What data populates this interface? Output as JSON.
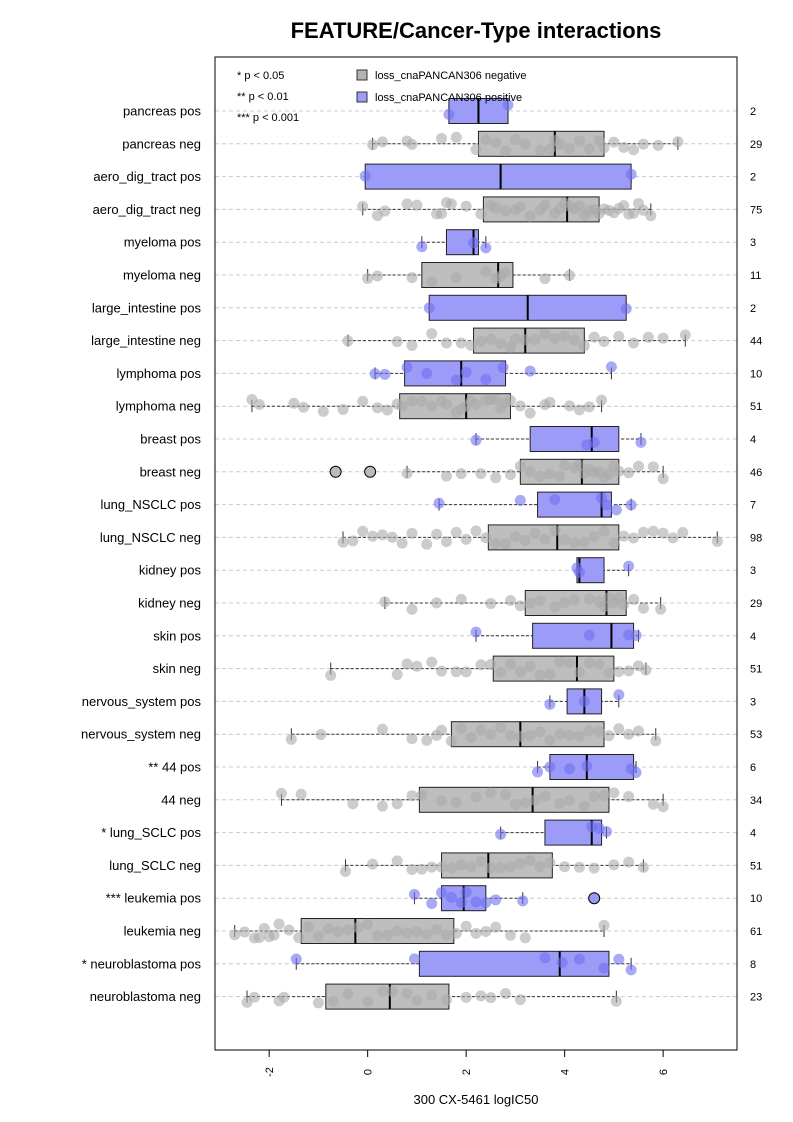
{
  "chart_data": {
    "type": "boxplot",
    "title": "FEATURE/Cancer-Type interactions",
    "xlabel": "300 CX-5461 logIC50",
    "ylabel": "",
    "xlim": [
      -3.1,
      7.5
    ],
    "x_ticks": [
      -2,
      0,
      2,
      4,
      6
    ],
    "x_tick_labels": [
      "-2",
      "0",
      "2",
      "4",
      "6"
    ],
    "grid": "horizontal dashed",
    "significance_key": [
      "* p < 0.05",
      "** p < 0.01",
      "*** p < 0.001"
    ],
    "legend": {
      "placement": "top-left",
      "entries": [
        {
          "label": "loss_cnaPANCAN306 negative",
          "color": "#b3b3b3"
        },
        {
          "label": "loss_cnaPANCAN306 positive",
          "color": "#9c9cf8"
        }
      ]
    },
    "colors": {
      "negative_box": "#bebebe",
      "positive_box": "#9c9cf8",
      "negative_point": "#aaaaaa",
      "positive_point": "#7070f0",
      "grid": "#cccccc"
    },
    "groups": [
      {
        "label": "pancreas pos",
        "n": "2",
        "status": "positive",
        "min": 1.65,
        "q1": 1.65,
        "median": 2.25,
        "q3": 2.85,
        "max": 2.85,
        "points": [
          1.65,
          2.85
        ]
      },
      {
        "label": "pancreas neg",
        "n": "29",
        "status": "negative",
        "min": 0.1,
        "q1": 2.25,
        "median": 3.8,
        "q3": 4.8,
        "max": 6.3,
        "points": [
          0.1,
          0.3,
          0.8,
          0.9,
          1.5,
          1.8,
          2.2,
          2.4,
          2.6,
          2.8,
          3.0,
          3.2,
          3.5,
          3.7,
          3.8,
          3.9,
          4.1,
          4.3,
          4.5,
          4.7,
          4.8,
          5.0,
          5.2,
          5.4,
          5.6,
          5.9,
          6.3
        ]
      },
      {
        "label": "aero_dig_tract pos",
        "n": "2",
        "status": "positive",
        "min": -0.05,
        "q1": -0.05,
        "median": 2.7,
        "q3": 5.35,
        "max": 5.35,
        "points": [
          -0.05,
          5.35
        ]
      },
      {
        "label": "aero_dig_tract neg",
        "n": "75",
        "status": "negative",
        "min": -0.1,
        "q1": 2.35,
        "median": 4.05,
        "q3": 4.7,
        "max": 5.75,
        "points": [
          -0.1,
          0.2,
          0.35,
          0.8,
          1.0,
          1.4,
          1.5,
          1.6,
          1.7,
          2.0,
          2.3,
          2.5,
          2.6,
          2.8,
          3.0,
          3.1,
          3.3,
          3.5,
          3.6,
          3.8,
          3.9,
          4.0,
          4.1,
          4.2,
          4.3,
          4.4,
          4.5,
          4.6,
          4.7,
          4.8,
          4.9,
          5.0,
          5.1,
          5.2,
          5.3,
          5.4,
          5.5,
          5.6,
          5.75
        ]
      },
      {
        "label": "myeloma pos",
        "n": "3",
        "status": "positive",
        "min": 1.1,
        "q1": 1.6,
        "median": 2.15,
        "q3": 2.25,
        "max": 2.4,
        "points": [
          1.1,
          2.15,
          2.4
        ]
      },
      {
        "label": "myeloma neg",
        "n": "11",
        "status": "negative",
        "min": 0.0,
        "q1": 1.1,
        "median": 2.65,
        "q3": 2.95,
        "max": 4.1,
        "points": [
          0.0,
          0.2,
          0.9,
          1.3,
          1.8,
          2.4,
          2.6,
          2.7,
          2.8,
          3.6,
          4.1
        ]
      },
      {
        "label": "large_intestine pos",
        "n": "2",
        "status": "positive",
        "min": 1.25,
        "q1": 1.25,
        "median": 3.25,
        "q3": 5.25,
        "max": 5.25,
        "points": [
          1.25,
          5.25
        ]
      },
      {
        "label": "large_intestine neg",
        "n": "44",
        "status": "negative",
        "min": -0.4,
        "q1": 2.15,
        "median": 3.2,
        "q3": 4.4,
        "max": 6.45,
        "points": [
          -0.4,
          0.6,
          0.9,
          1.3,
          1.6,
          1.9,
          2.1,
          2.3,
          2.5,
          2.7,
          2.9,
          3.0,
          3.2,
          3.4,
          3.6,
          3.8,
          4.0,
          4.2,
          4.4,
          4.6,
          4.8,
          5.1,
          5.4,
          5.7,
          6.0,
          6.45
        ]
      },
      {
        "label": "lymphoma pos",
        "n": "10",
        "status": "positive",
        "min": 0.15,
        "q1": 0.75,
        "median": 1.9,
        "q3": 2.8,
        "max": 4.95,
        "points": [
          0.15,
          0.35,
          0.8,
          1.2,
          1.8,
          2.0,
          2.4,
          2.75,
          3.3,
          4.95
        ]
      },
      {
        "label": "lymphoma neg",
        "n": "51",
        "status": "negative",
        "min": -2.35,
        "q1": 0.65,
        "median": 2.0,
        "q3": 2.9,
        "max": 4.75,
        "points": [
          -2.35,
          -2.2,
          -1.5,
          -1.3,
          -0.9,
          -0.5,
          -0.1,
          0.2,
          0.4,
          0.6,
          0.7,
          0.9,
          1.1,
          1.3,
          1.5,
          1.6,
          1.8,
          1.9,
          2.0,
          2.1,
          2.2,
          2.4,
          2.5,
          2.6,
          2.7,
          2.8,
          2.9,
          3.1,
          3.3,
          3.6,
          3.7,
          4.1,
          4.3,
          4.5,
          4.75
        ]
      },
      {
        "label": "breast pos",
        "n": "4",
        "status": "positive",
        "min": 2.2,
        "q1": 3.3,
        "median": 4.55,
        "q3": 5.1,
        "max": 5.55,
        "points": [
          2.2,
          4.45,
          4.6,
          5.55
        ]
      },
      {
        "label": "breast neg",
        "n": "46",
        "status": "negative",
        "min": 0.8,
        "q1": 3.1,
        "median": 4.35,
        "q3": 5.1,
        "max": 6.0,
        "points": [
          0.8,
          1.6,
          1.9,
          2.3,
          2.6,
          2.9,
          3.1,
          3.3,
          3.5,
          3.7,
          3.9,
          4.0,
          4.2,
          4.3,
          4.4,
          4.5,
          4.6,
          4.7,
          4.8,
          4.9,
          5.0,
          5.1,
          5.3,
          5.5,
          5.8,
          6.0
        ],
        "outliers": [
          -0.65,
          0.05
        ]
      },
      {
        "label": "lung_NSCLC pos",
        "n": "7",
        "status": "positive",
        "min": 1.45,
        "q1": 3.45,
        "median": 4.75,
        "q3": 4.95,
        "max": 5.35,
        "points": [
          1.45,
          3.1,
          3.8,
          4.75,
          4.85,
          5.05,
          5.35
        ]
      },
      {
        "label": "lung_NSCLC neg",
        "n": "98",
        "status": "negative",
        "min": -0.5,
        "q1": 2.45,
        "median": 3.85,
        "q3": 5.1,
        "max": 7.1,
        "points": [
          -0.5,
          -0.3,
          -0.1,
          0.1,
          0.3,
          0.5,
          0.7,
          0.9,
          1.2,
          1.4,
          1.6,
          1.8,
          2.0,
          2.2,
          2.4,
          2.6,
          2.8,
          3.0,
          3.2,
          3.4,
          3.6,
          3.8,
          4.0,
          4.2,
          4.4,
          4.6,
          4.8,
          5.0,
          5.2,
          5.4,
          5.6,
          5.8,
          6.0,
          6.2,
          6.4,
          7.1
        ]
      },
      {
        "label": "kidney pos",
        "n": "3",
        "status": "positive",
        "min": 4.25,
        "q1": 4.25,
        "median": 4.3,
        "q3": 4.8,
        "max": 5.3,
        "points": [
          4.25,
          4.3,
          5.3
        ]
      },
      {
        "label": "kidney neg",
        "n": "29",
        "status": "negative",
        "min": 0.35,
        "q1": 3.2,
        "median": 4.85,
        "q3": 5.25,
        "max": 5.95,
        "points": [
          0.35,
          0.9,
          1.4,
          1.9,
          2.5,
          2.9,
          3.1,
          3.3,
          3.5,
          3.8,
          4.0,
          4.2,
          4.5,
          4.7,
          4.8,
          4.9,
          5.0,
          5.1,
          5.2,
          5.4,
          5.6,
          5.95
        ]
      },
      {
        "label": "skin pos",
        "n": "4",
        "status": "positive",
        "min": 2.2,
        "q1": 3.35,
        "median": 4.95,
        "q3": 5.4,
        "max": 5.5,
        "points": [
          2.2,
          4.5,
          5.3,
          5.45
        ]
      },
      {
        "label": "skin neg",
        "n": "51",
        "status": "negative",
        "min": -0.75,
        "q1": 2.55,
        "median": 4.25,
        "q3": 5.0,
        "max": 5.65,
        "points": [
          -0.75,
          0.6,
          0.8,
          1.0,
          1.3,
          1.5,
          1.8,
          2.0,
          2.3,
          2.5,
          2.7,
          2.9,
          3.1,
          3.3,
          3.5,
          3.7,
          3.9,
          4.1,
          4.3,
          4.5,
          4.7,
          4.9,
          5.1,
          5.3,
          5.5,
          5.65
        ]
      },
      {
        "label": "nervous_system pos",
        "n": "3",
        "status": "positive",
        "min": 3.7,
        "q1": 4.05,
        "median": 4.4,
        "q3": 4.75,
        "max": 5.1,
        "points": [
          3.7,
          4.4,
          5.1
        ]
      },
      {
        "label": "nervous_system neg",
        "n": "53",
        "status": "negative",
        "min": -1.55,
        "q1": 1.7,
        "median": 3.1,
        "q3": 4.8,
        "max": 5.85,
        "points": [
          -1.55,
          -0.95,
          0.3,
          0.9,
          1.2,
          1.4,
          1.5,
          1.7,
          1.9,
          2.1,
          2.3,
          2.5,
          2.7,
          2.9,
          3.1,
          3.3,
          3.5,
          3.7,
          3.9,
          4.1,
          4.3,
          4.5,
          4.7,
          4.9,
          5.1,
          5.3,
          5.5,
          5.85
        ]
      },
      {
        "label": "** 44 pos",
        "n": "6",
        "status": "positive",
        "min": 3.45,
        "q1": 3.7,
        "median": 4.45,
        "q3": 5.4,
        "max": 5.45,
        "points": [
          3.45,
          3.7,
          4.1,
          4.45,
          5.35,
          5.45
        ]
      },
      {
        "label": "44 neg",
        "n": "34",
        "status": "negative",
        "min": -1.75,
        "q1": 1.05,
        "median": 3.35,
        "q3": 4.9,
        "max": 6.0,
        "points": [
          -1.75,
          -1.35,
          -0.3,
          0.3,
          0.6,
          0.9,
          1.1,
          1.5,
          1.8,
          2.2,
          2.5,
          2.8,
          3.0,
          3.2,
          3.4,
          3.6,
          3.9,
          4.1,
          4.4,
          4.6,
          4.8,
          5.0,
          5.3,
          5.8,
          6.0
        ]
      },
      {
        "label": "* lung_SCLC pos",
        "n": "4",
        "status": "positive",
        "min": 2.7,
        "q1": 3.6,
        "median": 4.55,
        "q3": 4.75,
        "max": 4.85,
        "points": [
          2.7,
          4.55,
          4.7,
          4.85
        ]
      },
      {
        "label": "lung_SCLC neg",
        "n": "51",
        "status": "negative",
        "min": -0.45,
        "q1": 1.5,
        "median": 2.45,
        "q3": 3.75,
        "max": 5.6,
        "points": [
          -0.45,
          0.1,
          0.6,
          0.9,
          1.1,
          1.3,
          1.5,
          1.7,
          1.9,
          2.1,
          2.3,
          2.5,
          2.7,
          2.9,
          3.1,
          3.3,
          3.5,
          3.7,
          4.0,
          4.3,
          4.6,
          5.0,
          5.3,
          5.6
        ]
      },
      {
        "label": "*** leukemia pos",
        "n": "10",
        "status": "positive",
        "min": 0.95,
        "q1": 1.5,
        "median": 1.95,
        "q3": 2.4,
        "max": 3.15,
        "points": [
          0.95,
          1.3,
          1.5,
          1.7,
          1.9,
          2.0,
          2.2,
          2.4,
          2.6,
          3.15
        ],
        "outliers": [
          4.6
        ]
      },
      {
        "label": "leukemia neg",
        "n": "61",
        "status": "negative",
        "min": -2.7,
        "q1": -1.35,
        "median": -0.25,
        "q3": 1.75,
        "max": 4.8,
        "points": [
          -2.7,
          -2.5,
          -2.3,
          -2.2,
          -2.1,
          -2.0,
          -1.9,
          -1.8,
          -1.6,
          -1.4,
          -1.2,
          -1.0,
          -0.8,
          -0.6,
          -0.4,
          -0.2,
          0.0,
          0.2,
          0.4,
          0.6,
          0.8,
          1.0,
          1.2,
          1.4,
          1.6,
          1.8,
          2.0,
          2.2,
          2.4,
          2.6,
          2.9,
          3.2,
          4.8
        ]
      },
      {
        "label": "* neuroblastoma pos",
        "n": "8",
        "status": "positive",
        "min": -1.45,
        "q1": 1.05,
        "median": 3.9,
        "q3": 4.9,
        "max": 5.35,
        "points": [
          -1.45,
          0.95,
          3.6,
          3.95,
          4.3,
          4.8,
          5.1,
          5.35
        ]
      },
      {
        "label": "neuroblastoma neg",
        "n": "23",
        "status": "negative",
        "min": -2.45,
        "q1": -0.85,
        "median": 0.45,
        "q3": 1.65,
        "max": 5.05,
        "points": [
          -2.45,
          -2.3,
          -1.8,
          -1.7,
          -1.0,
          -0.7,
          -0.4,
          0.0,
          0.3,
          0.5,
          0.8,
          1.0,
          1.3,
          1.6,
          2.0,
          2.3,
          2.5,
          2.8,
          3.1,
          5.05
        ]
      }
    ]
  }
}
